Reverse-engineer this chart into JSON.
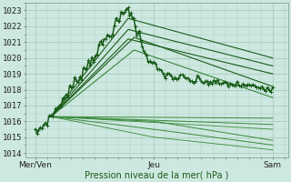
{
  "bg_color": "#cde8e0",
  "grid_color": "#aaccbb",
  "line_color_dark": "#1a5c1a",
  "line_color_mid": "#2a7a2a",
  "line_color_light": "#3a8a3a",
  "ylabel_values": [
    1014,
    1015,
    1016,
    1017,
    1018,
    1019,
    1020,
    1021,
    1022,
    1023
  ],
  "ylim": [
    1013.7,
    1023.5
  ],
  "xlabel": "Pression niveau de la mer( hPa )",
  "xtick_labels": [
    "Mer/Ven",
    "Jeu",
    "Sam"
  ],
  "xtick_positions": [
    0,
    60,
    120
  ],
  "xlim": [
    -5,
    128
  ],
  "tick_fontsize": 6.5
}
